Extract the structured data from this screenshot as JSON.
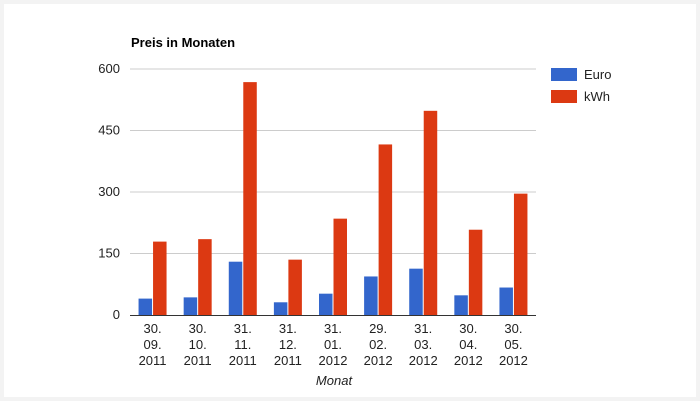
{
  "chart_data": {
    "type": "bar",
    "title": "Preis in Monaten",
    "xlabel": "Monat",
    "ylabel": "",
    "ylim": [
      0,
      600
    ],
    "yticks": [
      "0",
      "150",
      "300",
      "450",
      "600"
    ],
    "grid": true,
    "legend_position": "right",
    "categories": [
      [
        "30.",
        "09.",
        "2011"
      ],
      [
        "30.",
        "10.",
        "2011"
      ],
      [
        "31.",
        "11.",
        "2011"
      ],
      [
        "31.",
        "12.",
        "2011"
      ],
      [
        "31.",
        "01.",
        "2012"
      ],
      [
        "29.",
        "02.",
        "2012"
      ],
      [
        "31.",
        "03.",
        "2012"
      ],
      [
        "30.",
        "04.",
        "2012"
      ],
      [
        "30.",
        "05.",
        "2012"
      ]
    ],
    "series": [
      {
        "name": "Euro",
        "color": "#3366cc",
        "values": [
          40,
          43,
          130,
          31,
          52,
          94,
          113,
          48,
          67
        ]
      },
      {
        "name": "kWh",
        "color": "#dc3912",
        "values": [
          179,
          185,
          568,
          135,
          235,
          416,
          498,
          208,
          296
        ]
      }
    ]
  }
}
